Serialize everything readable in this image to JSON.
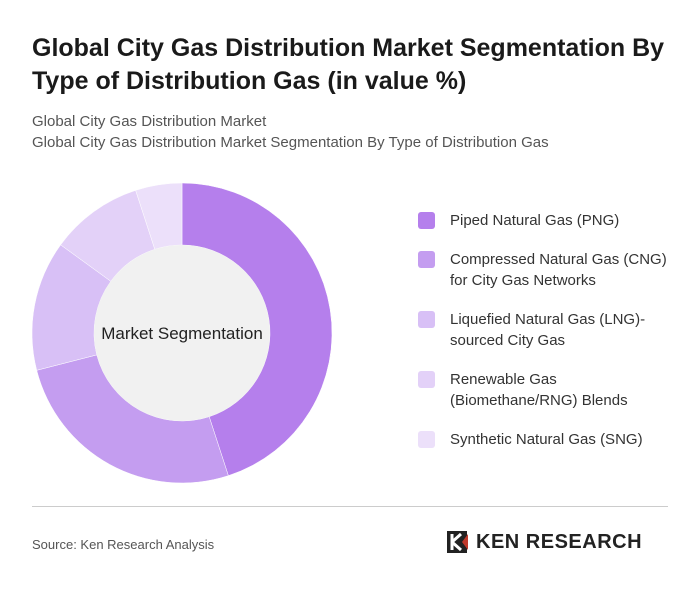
{
  "chart_data": {
    "type": "donut",
    "title": "Global City Gas Distribution Market Segmentation By Type of Distribution Gas (in value %)",
    "subtitle": [
      "Global City Gas Distribution Market",
      "Global City Gas Distribution Market Segmentation By Type of Distribution Gas"
    ],
    "center_label": "Market Segmentation",
    "categories": [
      "Piped Natural Gas (PNG)",
      "Compressed Natural Gas (CNG) for City Gas Networks",
      "Liquefied Natural Gas (LNG)-sourced City Gas",
      "Renewable Gas (Biomethane/RNG) Blends",
      "Synthetic Natural Gas (SNG)"
    ],
    "values": [
      45,
      26,
      14,
      10,
      5
    ],
    "colors": [
      "#b57fec",
      "#c49df0",
      "#d8c0f6",
      "#e3d1f8",
      "#ece0fa"
    ],
    "source": "Source: Ken Research Analysis",
    "logo": "KEN RESEARCH"
  }
}
